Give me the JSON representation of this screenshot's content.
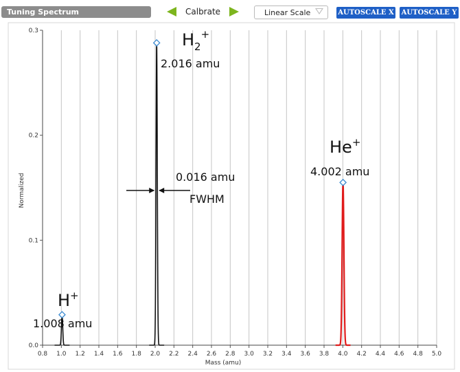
{
  "toolbar": {
    "title": "Tuning Spectrum",
    "calibrate_label": "Calbrate",
    "scale_value": "Linear Scale",
    "autoscale_x_label": "AUTOSCALE X",
    "autoscale_y_label": "AUTOSCALE Y",
    "icons": {
      "prev": "triangle-left-icon",
      "next": "triangle-right-icon",
      "dropdown": "chevron-down-icon"
    }
  },
  "colors": {
    "accent_arrows": "#7db51e",
    "button_bg": "#1e5fc6",
    "title_bg": "#8c8c8c",
    "primary_trace": "#111111",
    "highlight_trace": "#e01b1b",
    "marker": "#3a8ad1"
  },
  "chart_data": {
    "type": "line",
    "xlabel": "Mass (amu)",
    "ylabel": "Normalized",
    "xlim": [
      0.8,
      5.0
    ],
    "ylim": [
      0,
      0.3
    ],
    "xticks": [
      0.8,
      1.0,
      1.2,
      1.4,
      1.6,
      1.8,
      2.0,
      2.2,
      2.4,
      2.6,
      2.8,
      3.0,
      3.2,
      3.4,
      3.6,
      3.8,
      4.0,
      4.2,
      4.4,
      4.6,
      4.8,
      5.0
    ],
    "xtick_labels": [
      "0.8",
      "1.0",
      "1.2",
      "1.4",
      "1.6",
      "1.8",
      "2.0",
      "2.2",
      "2.4",
      "2.6",
      "2.8",
      "3.0",
      "3.2",
      "3.4",
      "3.6",
      "3.8",
      "4.0",
      "4.2",
      "4.4",
      "4.6",
      "4.8",
      "5.0"
    ],
    "yticks": [
      0.0,
      0.1,
      0.2,
      0.3
    ],
    "ytick_labels": [
      "0.0",
      "0.1",
      "0.2",
      "0.3"
    ],
    "grid": "vertical",
    "peaks": [
      {
        "ion": "H",
        "superscript": "+",
        "subscript": "",
        "mass": 1.008,
        "mass_label": "1.008 amu",
        "height": 0.029,
        "width": 0.016,
        "color": "#111111"
      },
      {
        "ion": "H",
        "superscript": "+",
        "subscript": "2",
        "mass": 2.016,
        "mass_label": "2.016 amu",
        "height": 0.288,
        "width": 0.016,
        "color": "#111111"
      },
      {
        "ion": "He",
        "superscript": "+",
        "subscript": "",
        "mass": 4.002,
        "mass_label": "4.002 amu",
        "height": 0.155,
        "width": 0.022,
        "color": "#e01b1b"
      }
    ],
    "fwhm_annotation": {
      "value_label": "0.016 amu",
      "text": "FWHM",
      "mass": 2.016
    }
  }
}
